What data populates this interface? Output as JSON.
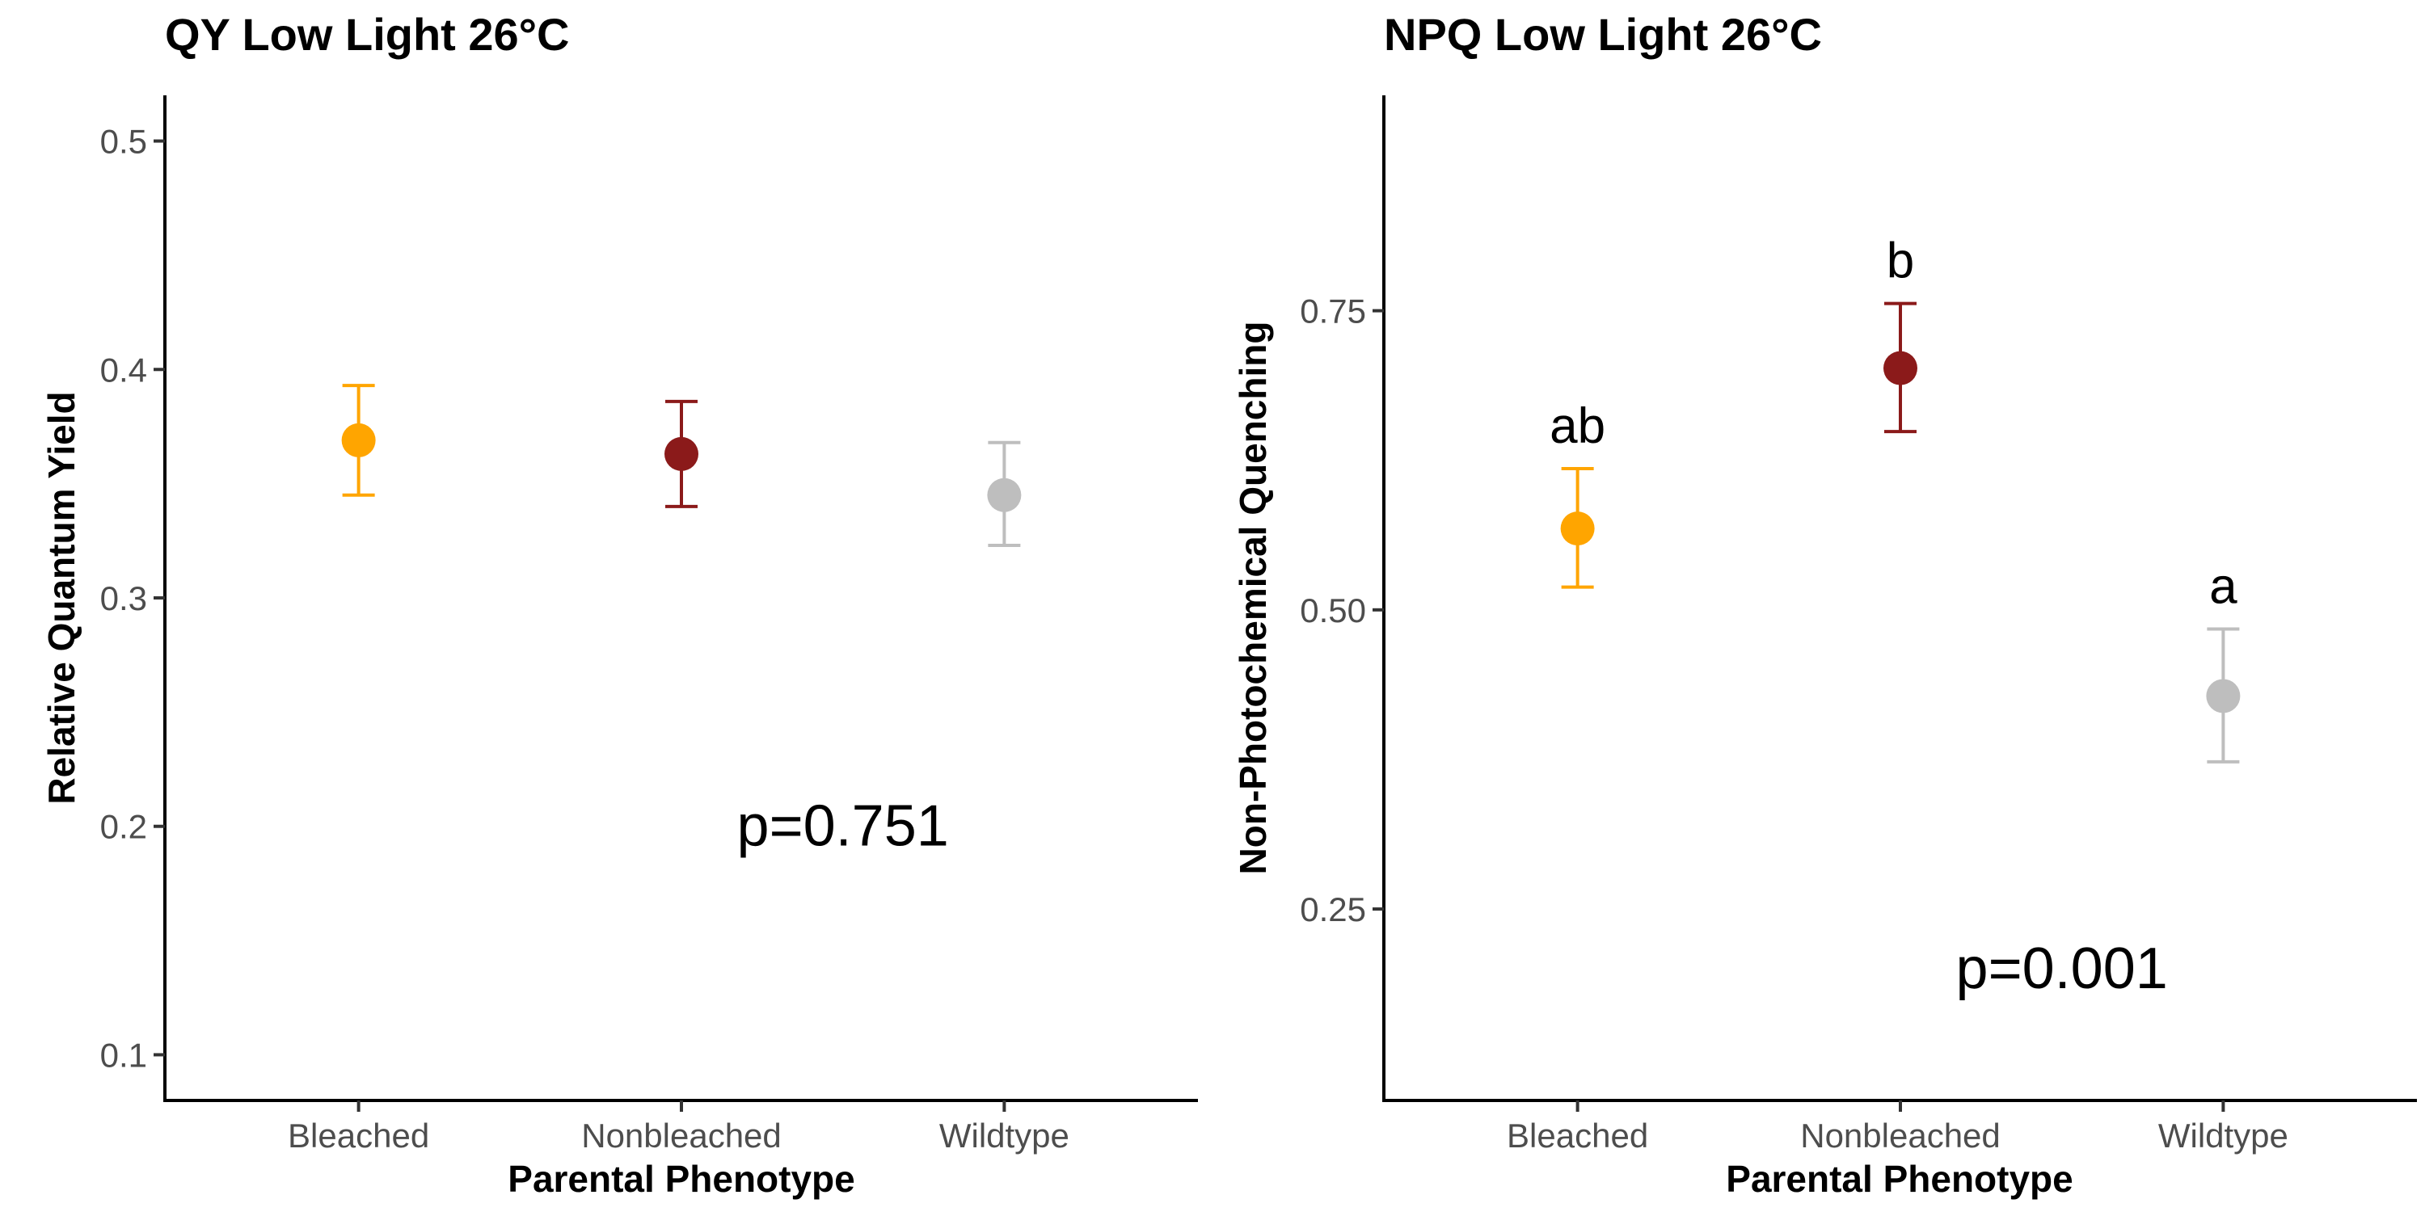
{
  "chart_data": [
    {
      "type": "scatter",
      "title": "QY Low Light 26°C",
      "xlabel": "Parental Phenotype",
      "ylabel": "Relative Quantum Yield",
      "categories": [
        "Bleached",
        "Nonbleached",
        "Wildtype"
      ],
      "ylim": [
        0.08,
        0.52
      ],
      "yticks": [
        "0.1",
        "0.2",
        "0.3",
        "0.4",
        "0.5"
      ],
      "grid": false,
      "legend": "none",
      "points": [
        {
          "category": "Bleached",
          "mean": 0.369,
          "lower": 0.345,
          "upper": 0.393,
          "color": "#FFA500",
          "letter": ""
        },
        {
          "category": "Nonbleached",
          "mean": 0.363,
          "lower": 0.34,
          "upper": 0.386,
          "color": "#8B1A1A",
          "letter": ""
        },
        {
          "category": "Wildtype",
          "mean": 0.345,
          "lower": 0.323,
          "upper": 0.368,
          "color": "#BEBEBE",
          "letter": ""
        }
      ],
      "annotation": {
        "text": "p=0.751",
        "x": 2.5,
        "y": 0.2
      }
    },
    {
      "type": "scatter",
      "title": "NPQ Low Light 26°C",
      "xlabel": "Parental Phenotype",
      "ylabel": "Non-Photochemical Quenching",
      "categories": [
        "Bleached",
        "Nonbleached",
        "Wildtype"
      ],
      "ylim": [
        0.09,
        0.93
      ],
      "yticks": [
        "0.25",
        "0.50",
        "0.75"
      ],
      "grid": false,
      "legend": "none",
      "points": [
        {
          "category": "Bleached",
          "mean": 0.568,
          "lower": 0.519,
          "upper": 0.618,
          "color": "#FFA500",
          "letter": "ab"
        },
        {
          "category": "Nonbleached",
          "mean": 0.702,
          "lower": 0.649,
          "upper": 0.756,
          "color": "#8B1A1A",
          "letter": "b"
        },
        {
          "category": "Wildtype",
          "mean": 0.428,
          "lower": 0.373,
          "upper": 0.484,
          "color": "#BEBEBE",
          "letter": "a"
        }
      ],
      "annotation": {
        "text": "p=0.001",
        "x": 2.5,
        "y": 0.2
      }
    }
  ]
}
